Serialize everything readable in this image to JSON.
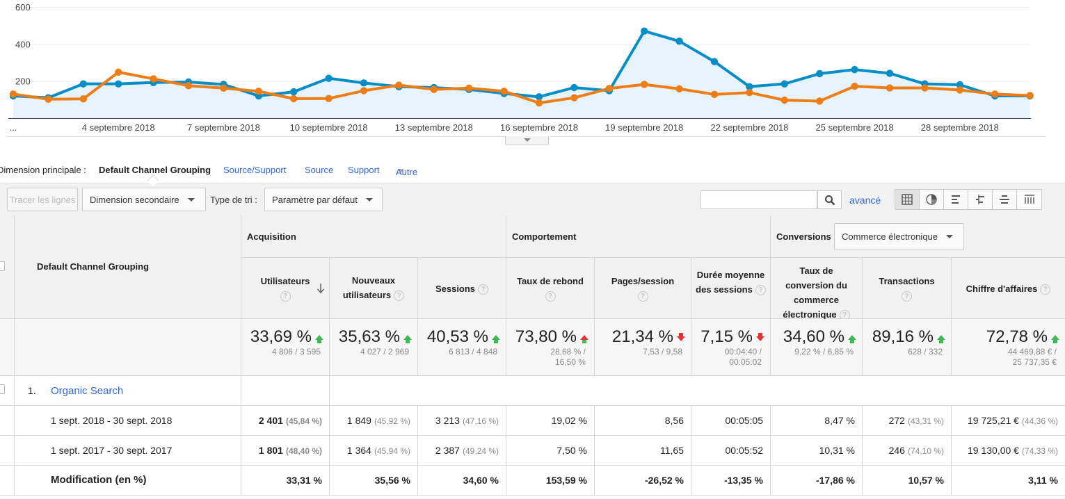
{
  "chart_data": {
    "type": "line",
    "x_tick_labels": [
      "...",
      "4 septembre 2018",
      "7 septembre 2018",
      "10 septembre 2018",
      "13 septembre 2018",
      "16 septembre 2018",
      "19 septembre 2018",
      "22 septembre 2018",
      "25 septembre 2018",
      "28 septembre 2018"
    ],
    "y_tick_labels": [
      "600",
      "400",
      "200"
    ],
    "ylim": [
      0,
      600
    ],
    "grid": true,
    "series": [
      {
        "color": "#058dc7",
        "area": true,
        "values": [
          120,
          110,
          185,
          185,
          192,
          195,
          182,
          120,
          142,
          215,
          190,
          170,
          165,
          155,
          133,
          115,
          165,
          148,
          470,
          415,
          305,
          170,
          185,
          240,
          262,
          242,
          185,
          180,
          120,
          120
        ]
      },
      {
        "color": "#ed7e17",
        "area": false,
        "values": [
          130,
          102,
          104,
          248,
          212,
          175,
          162,
          145,
          105,
          106,
          148,
          178,
          155,
          162,
          145,
          82,
          110,
          160,
          182,
          158,
          128,
          138,
          97,
          92,
          172,
          163,
          163,
          152,
          130,
          122
        ]
      }
    ]
  },
  "dimension_bar": {
    "label": "Dimension principale :",
    "active": "Default Channel Grouping",
    "links": [
      "Source/Support",
      "Source",
      "Support",
      "Autre"
    ]
  },
  "toolbar": {
    "plot_rows": "Tracer les lignes",
    "secondary_dimension": "Dimension secondaire",
    "sort_label": "Type de tri :",
    "sort_value": "Paramètre par défaut",
    "search_placeholder": "",
    "advanced": "avancé"
  },
  "table": {
    "dimension_header": "Default Channel Grouping",
    "groups": {
      "acquisition": "Acquisition",
      "behavior": "Comportement",
      "conversions": "Conversions"
    },
    "conversion_select": "Commerce électronique",
    "columns": [
      "Utilisateurs",
      "Nouveaux utilisateurs",
      "Sessions",
      "Taux de rebond",
      "Pages/session",
      "Durée moyenne des sessions",
      "Taux de conversion du commerce électronique",
      "Transactions",
      "Chiffre d'affaires"
    ],
    "summary": [
      {
        "value": "33,69 %",
        "dir": "up",
        "sub1": "4 806 / 3 595",
        "sub2": ""
      },
      {
        "value": "35,63 %",
        "dir": "up",
        "sub1": "4 027 / 2 969",
        "sub2": ""
      },
      {
        "value": "40,53 %",
        "dir": "up",
        "sub1": "6 813 / 4 848",
        "sub2": ""
      },
      {
        "value": "73,80 %",
        "dir": "up-red",
        "sub1": "28,68 % /",
        "sub2": "16,50 %"
      },
      {
        "value": "21,34 %",
        "dir": "down",
        "sub1": "7,53 / 9,58",
        "sub2": ""
      },
      {
        "value": "7,15 %",
        "dir": "down",
        "sub1": "00:04:40 /",
        "sub2": "00:05:02"
      },
      {
        "value": "34,60 %",
        "dir": "up",
        "sub1": "9,22 % / 6,85 %",
        "sub2": ""
      },
      {
        "value": "89,16 %",
        "dir": "up",
        "sub1": "628 / 332",
        "sub2": ""
      },
      {
        "value": "72,78 %",
        "dir": "up",
        "sub1": "44 469,88 € /",
        "sub2": "25 737,35 €"
      }
    ],
    "group_row": {
      "index": "1.",
      "name": "Organic Search"
    },
    "rows": [
      {
        "label": "1 sept. 2018 - 30 sept. 2018",
        "cells": [
          {
            "v": "2 401",
            "p": "(45,84 %)"
          },
          {
            "v": "1 849",
            "p": "(45,92 %)"
          },
          {
            "v": "3 213",
            "p": "(47,16 %)"
          },
          {
            "v": "19,02 %",
            "p": ""
          },
          {
            "v": "8,56",
            "p": ""
          },
          {
            "v": "00:05:05",
            "p": ""
          },
          {
            "v": "8,47 %",
            "p": ""
          },
          {
            "v": "272",
            "p": "(43,31 %)"
          },
          {
            "v": "19 725,21 €",
            "p": "(44,36 %)"
          }
        ]
      },
      {
        "label": "1 sept. 2017 - 30 sept. 2017",
        "cells": [
          {
            "v": "1 801",
            "p": "(48,40 %)"
          },
          {
            "v": "1 364",
            "p": "(45,94 %)"
          },
          {
            "v": "2 387",
            "p": "(49,24 %)"
          },
          {
            "v": "7,50 %",
            "p": ""
          },
          {
            "v": "11,65",
            "p": ""
          },
          {
            "v": "00:05:52",
            "p": ""
          },
          {
            "v": "10,31 %",
            "p": ""
          },
          {
            "v": "246",
            "p": "(74,10 %)"
          },
          {
            "v": "19 130,00 €",
            "p": "(74,33 %)"
          }
        ]
      }
    ],
    "change_row": {
      "label": "Modification (en %)",
      "values": [
        "33,31 %",
        "35,56 %",
        "34,60 %",
        "153,59 %",
        "-26,52 %",
        "-13,35 %",
        "-17,86 %",
        "10,57 %",
        "3,11 %"
      ]
    }
  }
}
